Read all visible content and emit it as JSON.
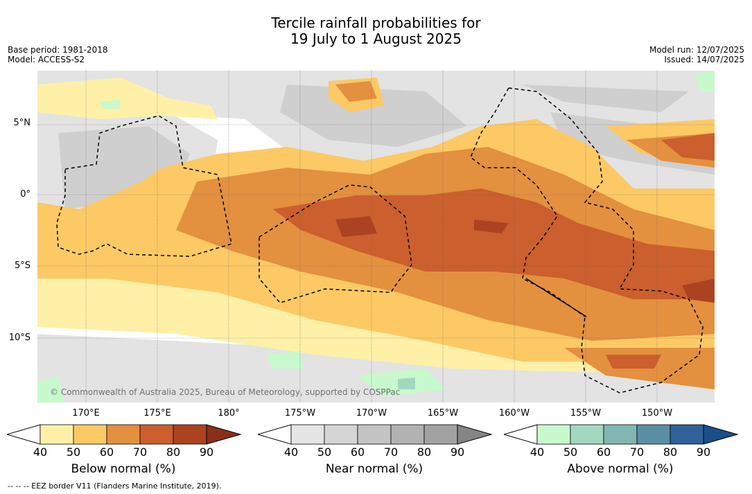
{
  "title": {
    "line1": "Tercile rainfall probabilities for",
    "line2": "19 July to 1 August 2025"
  },
  "meta_left": {
    "base_period": "Base period: 1981-2018",
    "model": "Model: ACCESS-S2"
  },
  "meta_right": {
    "model_run": "Model run: 12/07/2025",
    "issued": "Issued: 14/07/2025"
  },
  "copyright": "© Commonwealth of Australia 2025, Bureau of Meteorology, supported by COSPPac",
  "lat_labels": [
    "5°N",
    "0°",
    "5°S",
    "10°S"
  ],
  "lon_labels": [
    "170°E",
    "175°E",
    "180°",
    "175°W",
    "170°W",
    "165°W",
    "160°W",
    "155°W",
    "150°W"
  ],
  "colorbars": [
    {
      "label": "Below normal (%)",
      "colors": [
        "#fff0a8",
        "#fcc965",
        "#e3903f",
        "#cb5f2d",
        "#ab4321",
        "#8a2f18"
      ]
    },
    {
      "label": "Near normal (%)",
      "colors": [
        "#e5e5e5",
        "#d5d5d5",
        "#c4c4c4",
        "#b2b2b2",
        "#a2a2a2",
        "#858585"
      ]
    },
    {
      "label": "Above normal (%)",
      "colors": [
        "#c8f9cc",
        "#a3d8c0",
        "#81b7b0",
        "#5b90a2",
        "#30619a",
        "#1a4f8a"
      ]
    }
  ],
  "colorbar_ticks": [
    "40",
    "50",
    "60",
    "70",
    "80",
    "90"
  ],
  "footer": "--  --  -- EEZ border V11 (Flanders Marine Institute, 2019)."
}
